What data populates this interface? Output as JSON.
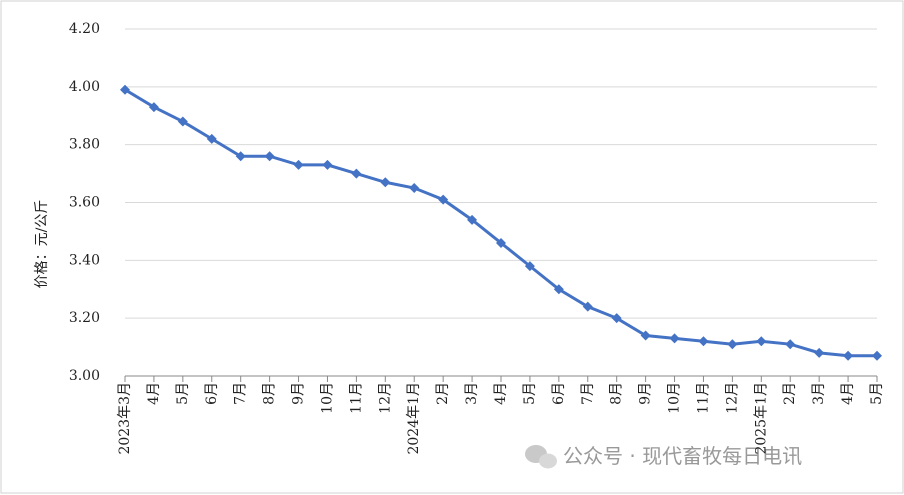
{
  "chart_data": {
    "type": "line",
    "ylabel": "价格：元/公斤",
    "categories": [
      "2023年3月",
      "4月",
      "5月",
      "6月",
      "7月",
      "8月",
      "9月",
      "10月",
      "11月",
      "12月",
      "2024年1月",
      "2月",
      "3月",
      "4月",
      "5月",
      "6月",
      "7月",
      "8月",
      "9月",
      "10月",
      "11月",
      "12月",
      "2025年1月",
      "2月",
      "3月",
      "4月",
      "5月"
    ],
    "series": [
      {
        "name": "价格",
        "color": "#4472c4",
        "values": [
          3.99,
          3.93,
          3.88,
          3.82,
          3.76,
          3.76,
          3.73,
          3.73,
          3.7,
          3.67,
          3.65,
          3.61,
          3.54,
          3.46,
          3.38,
          3.3,
          3.24,
          3.2,
          3.14,
          3.13,
          3.12,
          3.11,
          3.12,
          3.11,
          3.08,
          3.07,
          3.07
        ]
      }
    ],
    "ylim": [
      3.0,
      4.2
    ],
    "yticks": [
      {
        "value": 3.0,
        "label": "3.00"
      },
      {
        "value": 3.2,
        "label": "3.20"
      },
      {
        "value": 3.4,
        "label": "3.40"
      },
      {
        "value": 3.6,
        "label": "3.60"
      },
      {
        "value": 3.8,
        "label": "3.80"
      },
      {
        "value": 4.0,
        "label": "4.00"
      },
      {
        "value": 4.2,
        "label": "4.20"
      }
    ],
    "grid": true,
    "watermark": "公众号 · 现代畜牧每日电讯"
  }
}
